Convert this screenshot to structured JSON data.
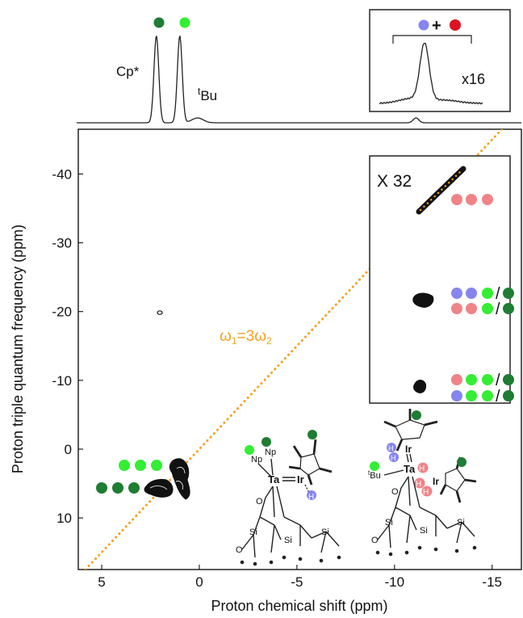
{
  "chart_data": {
    "type": "contour",
    "xlabel": "Proton chemical shift (ppm)",
    "ylabel": "Proton triple quantum frequency (ppm)",
    "xlim": [
      6.2,
      -16.5
    ],
    "ylim": [
      17.5,
      -46.5
    ],
    "x_reversed": true,
    "y_reversed": true,
    "x_ticks": [
      5,
      0,
      -5,
      -10,
      -15
    ],
    "y_ticks": [
      10,
      0,
      -10,
      -20,
      -30,
      -40
    ],
    "diagonal": {
      "label_main": "ω",
      "sub1": "1",
      "eq": "=3ω",
      "sub2": "2",
      "slope": 3,
      "color": "#f5a020"
    },
    "projection": {
      "peaks": [
        {
          "x": 2.2,
          "label": "Cp*",
          "dot_color": "#1e7d32"
        },
        {
          "x": 1.0,
          "label": "Bu",
          "label_prefix": "t",
          "dot_color": "#33ee33"
        }
      ],
      "inset_label": "x16",
      "inset_sum_sign": "+"
    },
    "correlations": [
      {
        "x": 2.1,
        "y": -19.6,
        "kind": "small"
      },
      {
        "x": 1.0,
        "y": 3.0,
        "kind": "cluster"
      },
      {
        "x": 2.2,
        "y": 6.6,
        "kind": "cluster"
      },
      {
        "x": -11.1,
        "y": -34.0,
        "kind": "diagonal"
      }
    ],
    "inset_box": {
      "label": "X 32",
      "peaks": [
        {
          "x": -11.2,
          "y": -21.2
        },
        {
          "x": -11.2,
          "y": -8.8
        }
      ]
    },
    "colors": {
      "light_green": "#33ee33",
      "dark_green": "#1e7d32",
      "pink": "#ee8488",
      "blue": "#8585ee",
      "red": "#dd1122",
      "diagonal": "#f5a020"
    },
    "slash": "/",
    "structures": {
      "left": {
        "atoms": [
          "Np",
          "Np",
          "Ta",
          "Ir",
          "H",
          "O",
          "Si",
          "Si",
          "Si",
          "O"
        ]
      },
      "right": {
        "atoms": [
          "Ir",
          "H",
          "H",
          "Ta",
          "H",
          "H",
          "H",
          "Ir",
          "Bu",
          "t",
          "O",
          "Si",
          "Si",
          "Si",
          "O"
        ]
      }
    }
  }
}
